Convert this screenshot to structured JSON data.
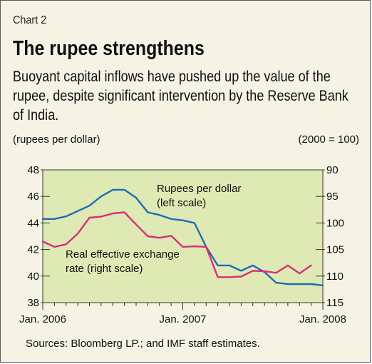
{
  "header": {
    "chart_number": "Chart 2",
    "title": "The rupee strengthens",
    "subtitle": "Buoyant capital inflows have pushed up the value of the rupee, despite significant intervention by the Reserve Bank of India."
  },
  "footer": {
    "source": "Sources: Bloomberg LP.; and IMF staff estimates."
  },
  "colors": {
    "background": "#f4f3e4",
    "plot_area": "#dfe9b4",
    "rupees_line": "#1f6db3",
    "reer_line": "#d6307a"
  },
  "chart_data": {
    "type": "line",
    "left_unit": "(rupees per dollar)",
    "right_unit": "(2000 = 100)",
    "x_tick_labels": [
      "Jan. 2006",
      "Jan. 2007",
      "Jan. 2008"
    ],
    "x_range_months": [
      0,
      24
    ],
    "left_axis": {
      "ylim": [
        38,
        48
      ],
      "ticks": [
        38,
        40,
        42,
        44,
        46,
        48
      ]
    },
    "right_axis": {
      "ylim": [
        115,
        90
      ],
      "inverted": true,
      "ticks": [
        90,
        95,
        100,
        105,
        110,
        115
      ]
    },
    "series": [
      {
        "name": "Rupees per dollar",
        "annotation_line1": "Rupees per dollar",
        "annotation_line2": "(left scale)",
        "axis": "left",
        "x": [
          0,
          1,
          2,
          3,
          4,
          5,
          6,
          7,
          8,
          9,
          10,
          11,
          12,
          13,
          14,
          15,
          16,
          17,
          18,
          19,
          20,
          21,
          22,
          23,
          24
        ],
        "values": [
          44.3,
          44.3,
          44.5,
          44.9,
          45.3,
          46.0,
          46.5,
          46.5,
          45.9,
          44.8,
          44.6,
          44.3,
          44.2,
          44.0,
          42.2,
          40.8,
          40.8,
          40.4,
          40.8,
          40.3,
          39.5,
          39.4,
          39.4,
          39.4,
          39.3
        ]
      },
      {
        "name": "Real effective exchange rate",
        "annotation_line1": "Real effective exchange",
        "annotation_line2": "rate (right scale)",
        "axis": "right",
        "x": [
          0,
          1,
          2,
          3,
          4,
          5,
          6,
          7,
          8,
          9,
          10,
          11,
          12,
          13,
          14,
          15,
          16,
          17,
          18,
          19,
          20,
          21,
          22,
          23
        ],
        "values": [
          103.5,
          104.5,
          104.0,
          102.0,
          99.0,
          98.8,
          98.2,
          98.0,
          100.3,
          102.5,
          102.8,
          102.4,
          104.5,
          104.4,
          104.5,
          110.2,
          110.2,
          110.1,
          109.0,
          109.1,
          109.4,
          108.0,
          109.5,
          108.0
        ]
      }
    ]
  }
}
